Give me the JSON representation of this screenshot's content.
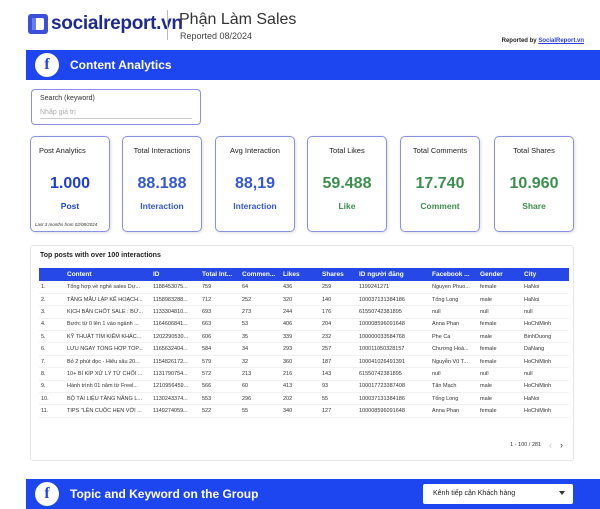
{
  "header": {
    "logo_text": "socialreport.vn",
    "title": "Phận Làm Sales",
    "subtitle": "Reported 08/2024",
    "reported_by_prefix": "Reported by ",
    "reported_by_link": "SocialReport.vn",
    "brand_color": "#1e46f0"
  },
  "section_top": {
    "icon": "facebook-icon",
    "title": "Content Analytics"
  },
  "search": {
    "label": "Search (keyword)",
    "placeholder": "Nhập giá trị"
  },
  "cards": {
    "post": {
      "title": "Post Analytics",
      "value": "1.000",
      "label": "Post",
      "note": "Last 3 months from 02/08/2024"
    },
    "interactions": {
      "title": "Total Interactions",
      "value": "88.188",
      "label": "Interaction"
    },
    "avg": {
      "title": "Avg Interaction",
      "value": "88,19",
      "label": "Interaction"
    },
    "likes": {
      "title": "Total Likes",
      "value": "59.488",
      "label": "Like"
    },
    "comments": {
      "title": "Total Comments",
      "value": "17.740",
      "label": "Comment"
    },
    "shares": {
      "title": "Total Shares",
      "value": "10.960",
      "label": "Share"
    }
  },
  "table": {
    "title": "Top posts with over 100 interactions",
    "columns": [
      "",
      "Content",
      "ID",
      "Total Int...",
      "Commen...",
      "Likes",
      "Shares",
      "ID người đăng",
      "Facebook ...",
      "Gender",
      "City"
    ],
    "rows": [
      [
        "1.",
        "Tổng hợp về nghề sales Dự...",
        "1188453075...",
        "759",
        "64",
        "436",
        "259",
        "1199241271",
        "Nguyen Phuo...",
        "female",
        "HaNoi"
      ],
      [
        "2.",
        "TĂNG MẪU LẬP KẾ HOẠCH...",
        "1158983288...",
        "712",
        "252",
        "320",
        "140",
        "100037131384186",
        "Tống Long",
        "male",
        "HaNoi"
      ],
      [
        "3.",
        "KỊCH BẢN CHỐT SALE : BỨ...",
        "1133304810...",
        "693",
        "273",
        "244",
        "176",
        "61550742381895",
        "null",
        "null",
        "null"
      ],
      [
        "4.",
        "Bước từ 0 lên 1 vào ngành ...",
        "1164606841...",
        "663",
        "53",
        "406",
        "204",
        "100008596091648",
        "Anna Phan",
        "female",
        "HoChiMinh"
      ],
      [
        "5.",
        "KỸ THUẬT TÌM KIẾM KHÁC...",
        "1202290530...",
        "606",
        "35",
        "339",
        "232",
        "100000033584768",
        "Phe Ca",
        "male",
        "BinhDuong"
      ],
      [
        "6.",
        "LƯU NGAY TỔNG HỢP TOP...",
        "1165632404...",
        "584",
        "34",
        "293",
        "257",
        "100011050328157",
        "Chương Hoà...",
        "female",
        "DaNang"
      ],
      [
        "7.",
        "Bỏ 2 phút đọc - Hiểu sâu 20...",
        "1154826172...",
        "579",
        "32",
        "360",
        "187",
        "100041026491391",
        "Nguyễn Vũ T...",
        "female",
        "HoChiMinh"
      ],
      [
        "8.",
        "10+ BÍ KÍP XỬ LÝ TỪ CHỐI ...",
        "1131790754...",
        "572",
        "213",
        "216",
        "143",
        "61550742381895",
        "null",
        "null",
        "null"
      ],
      [
        "9.",
        "Hành trình 01 năm từ Freel...",
        "1210956459...",
        "566",
        "60",
        "413",
        "93",
        "100017723387408",
        "Tân Mạch",
        "male",
        "HoChiMinh"
      ],
      [
        "10.",
        "BỘ TÀI LIỆU TĂNG NĂNG L...",
        "1130243374...",
        "553",
        "296",
        "202",
        "55",
        "100037131384186",
        "Tống Long",
        "male",
        "HaNoi"
      ],
      [
        "11.",
        "TIPS \"LÊN CUỘC HẸN VỚI ...",
        "1149274059...",
        "522",
        "55",
        "340",
        "127",
        "100008596091648",
        "Anna Phan",
        "female",
        "HoChiMinh"
      ]
    ],
    "pager": "1 - 100 / 281"
  },
  "section_bottom": {
    "icon": "facebook-icon",
    "title": "Topic and Keyword on the Group",
    "dropdown_value": "Kênh tiếp cận Khách hàng"
  }
}
